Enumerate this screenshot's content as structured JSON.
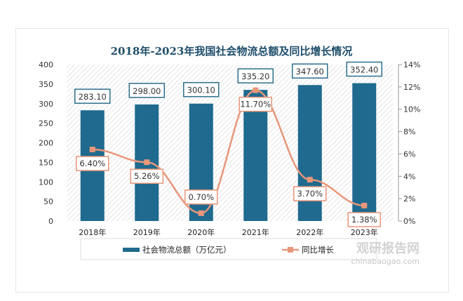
{
  "chart_data": {
    "type": "bar+line",
    "title": "2018年-2023年我国社会物流总额及同比增长情况",
    "categories": [
      "2018年",
      "2019年",
      "2020年",
      "2021年",
      "2022年",
      "2023年"
    ],
    "series": [
      {
        "name": "社会物流总额（万亿元）",
        "type": "bar",
        "axis": "left",
        "values": [
          283.1,
          298.0,
          300.1,
          335.2,
          347.6,
          352.4
        ],
        "labels": [
          "283.10",
          "298.00",
          "300.10",
          "335.20",
          "347.60",
          "352.40"
        ]
      },
      {
        "name": "同比增长",
        "type": "line",
        "axis": "right",
        "values": [
          6.4,
          5.26,
          0.7,
          11.7,
          3.7,
          1.38
        ],
        "labels": [
          "6.40%",
          "5.26%",
          "0.70%",
          "11.70%",
          "3.70%",
          "1.38%"
        ]
      }
    ],
    "y_left": {
      "range": [
        0,
        400
      ],
      "ticks": [
        "0",
        "50",
        "100",
        "150",
        "200",
        "250",
        "300",
        "350",
        "400"
      ]
    },
    "y_right": {
      "range": [
        0,
        14
      ],
      "ticks": [
        "0%",
        "2%",
        "4%",
        "6%",
        "8%",
        "10%",
        "12%",
        "14%"
      ]
    },
    "legend": "bottom",
    "colors": {
      "bar": "#1f6a8e",
      "line": "#e9967a",
      "title": "#1f4e6b"
    }
  },
  "watermark": {
    "brand": "观研报告网",
    "url": "chinabaogao.com"
  }
}
